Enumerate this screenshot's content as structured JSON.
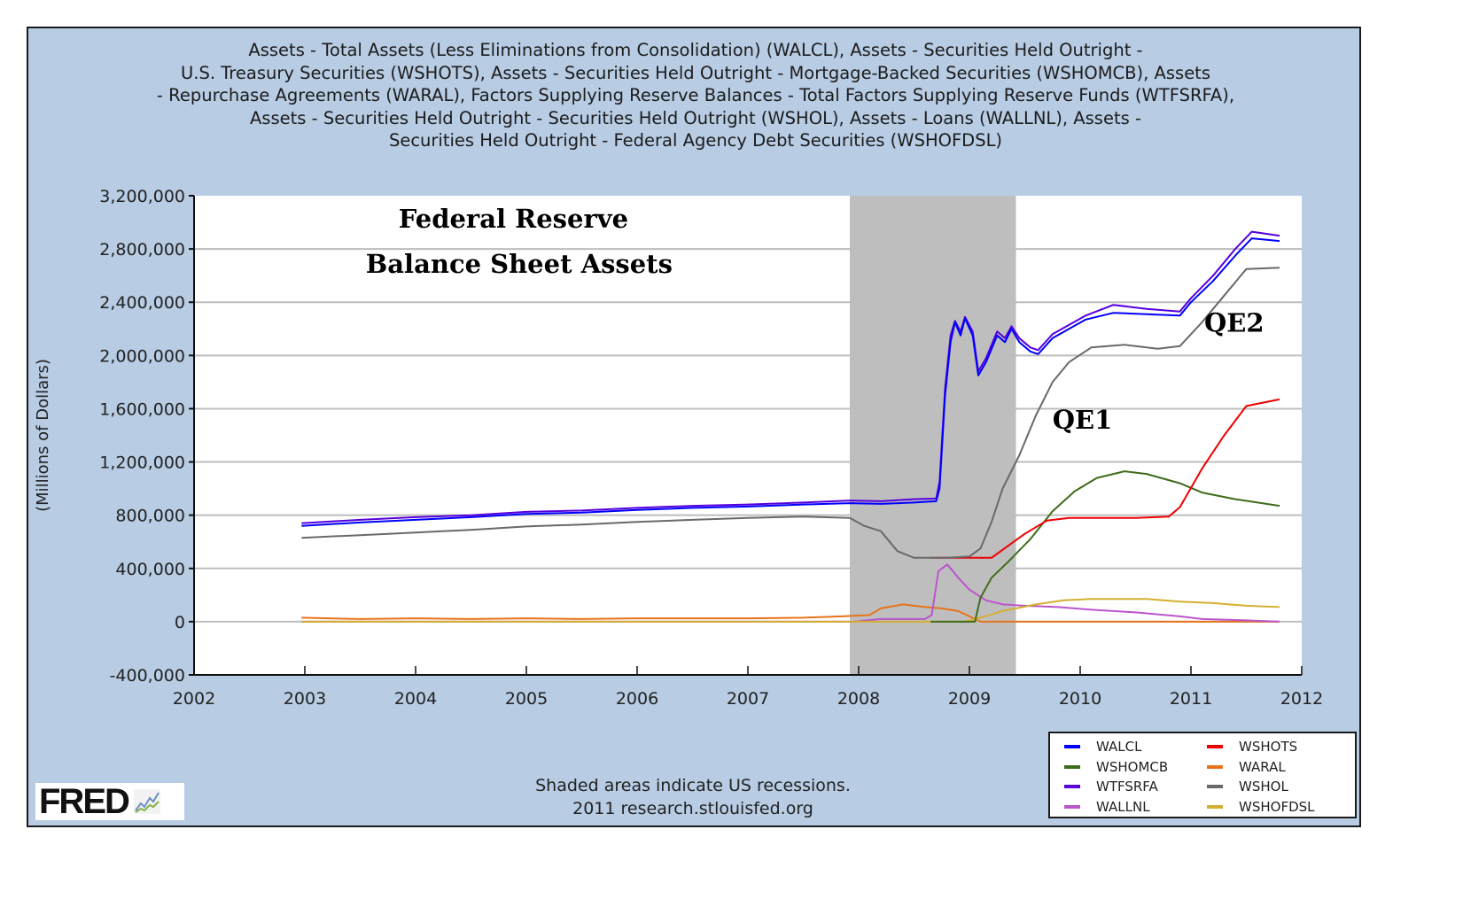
{
  "chart_data": {
    "type": "line",
    "title": "Assets - Total Assets (Less Eliminations from Consolidation) (WALCL), Assets - Securities Held Outright -\nU.S. Treasury Securities (WSHOTS), Assets - Securities Held Outright - Mortgage-Backed Securities (WSHOMCB), Assets\n- Repurchase Agreements (WARAL), Factors Supplying Reserve Balances - Total Factors Supplying Reserve Funds (WTFSRFA),\nAssets - Securities Held Outright - Securities Held Outright (WSHOL), Assets - Loans (WALLNL), Assets -\nSecurities Held Outright - Federal Agency Debt Securities (WSHOFDSL)",
    "xlabel": "",
    "ylabel": "(Millions of Dollars)",
    "xlim": [
      2002,
      2012
    ],
    "ylim": [
      -400000,
      3200000
    ],
    "x_ticks": [
      "2002",
      "2003",
      "2004",
      "2005",
      "2006",
      "2007",
      "2008",
      "2009",
      "2010",
      "2011",
      "2012"
    ],
    "y_ticks": [
      "3,200,000",
      "2,800,000",
      "2,400,000",
      "2,000,000",
      "1,600,000",
      "1,200,000",
      "800,000",
      "400,000",
      "0",
      "-400,000"
    ],
    "y_tick_values": [
      3200000,
      2800000,
      2400000,
      2000000,
      1600000,
      1200000,
      800000,
      400000,
      0,
      -400000
    ],
    "grid": true,
    "legend_position": "bottom-right",
    "recessions": [
      [
        2007.92,
        2009.42
      ]
    ],
    "annotations": [
      {
        "text": "Federal Reserve",
        "x": 2003.55,
        "y": 2960000
      },
      {
        "text": "Balance Sheet Assets",
        "x": 2003.55,
        "y": 2620000
      },
      {
        "text": "QE1",
        "x": 2009.75,
        "y": 1450000
      },
      {
        "text": "QE2",
        "x": 2011.12,
        "y": 2180000
      }
    ],
    "series": [
      {
        "name": "WALCL",
        "color": "#0000ff",
        "points": [
          [
            2002.97,
            720000
          ],
          [
            2003.5,
            745000
          ],
          [
            2004,
            765000
          ],
          [
            2004.5,
            785000
          ],
          [
            2005,
            810000
          ],
          [
            2005.5,
            820000
          ],
          [
            2006,
            840000
          ],
          [
            2006.5,
            855000
          ],
          [
            2007,
            865000
          ],
          [
            2007.5,
            880000
          ],
          [
            2007.92,
            890000
          ],
          [
            2008.2,
            885000
          ],
          [
            2008.5,
            895000
          ],
          [
            2008.7,
            905000
          ],
          [
            2008.73,
            1000000
          ],
          [
            2008.78,
            1700000
          ],
          [
            2008.83,
            2100000
          ],
          [
            2008.87,
            2250000
          ],
          [
            2008.92,
            2150000
          ],
          [
            2008.96,
            2280000
          ],
          [
            2009.03,
            2150000
          ],
          [
            2009.08,
            1850000
          ],
          [
            2009.15,
            1950000
          ],
          [
            2009.25,
            2150000
          ],
          [
            2009.32,
            2100000
          ],
          [
            2009.38,
            2200000
          ],
          [
            2009.45,
            2100000
          ],
          [
            2009.55,
            2030000
          ],
          [
            2009.62,
            2010000
          ],
          [
            2009.75,
            2130000
          ],
          [
            2009.9,
            2200000
          ],
          [
            2010.05,
            2270000
          ],
          [
            2010.3,
            2320000
          ],
          [
            2010.6,
            2310000
          ],
          [
            2010.9,
            2300000
          ],
          [
            2011.0,
            2400000
          ],
          [
            2011.2,
            2560000
          ],
          [
            2011.4,
            2750000
          ],
          [
            2011.55,
            2880000
          ],
          [
            2011.8,
            2860000
          ]
        ]
      },
      {
        "name": "WTFSRFA",
        "color": "#5500dd",
        "points": [
          [
            2002.97,
            740000
          ],
          [
            2003.5,
            765000
          ],
          [
            2004,
            785000
          ],
          [
            2004.5,
            800000
          ],
          [
            2005,
            825000
          ],
          [
            2005.5,
            835000
          ],
          [
            2006,
            855000
          ],
          [
            2006.5,
            870000
          ],
          [
            2007,
            880000
          ],
          [
            2007.5,
            895000
          ],
          [
            2007.92,
            910000
          ],
          [
            2008.2,
            905000
          ],
          [
            2008.5,
            920000
          ],
          [
            2008.7,
            925000
          ],
          [
            2008.73,
            1050000
          ],
          [
            2008.78,
            1750000
          ],
          [
            2008.83,
            2150000
          ],
          [
            2008.87,
            2260000
          ],
          [
            2008.92,
            2180000
          ],
          [
            2008.96,
            2290000
          ],
          [
            2009.03,
            2180000
          ],
          [
            2009.08,
            1880000
          ],
          [
            2009.15,
            1980000
          ],
          [
            2009.25,
            2180000
          ],
          [
            2009.32,
            2130000
          ],
          [
            2009.38,
            2220000
          ],
          [
            2009.45,
            2130000
          ],
          [
            2009.55,
            2060000
          ],
          [
            2009.62,
            2040000
          ],
          [
            2009.75,
            2160000
          ],
          [
            2009.9,
            2230000
          ],
          [
            2010.05,
            2300000
          ],
          [
            2010.3,
            2380000
          ],
          [
            2010.6,
            2350000
          ],
          [
            2010.9,
            2330000
          ],
          [
            2011.0,
            2430000
          ],
          [
            2011.2,
            2600000
          ],
          [
            2011.4,
            2800000
          ],
          [
            2011.55,
            2930000
          ],
          [
            2011.8,
            2900000
          ]
        ]
      },
      {
        "name": "WSHOL",
        "color": "#696969",
        "points": [
          [
            2002.97,
            630000
          ],
          [
            2003.5,
            650000
          ],
          [
            2004,
            670000
          ],
          [
            2004.5,
            690000
          ],
          [
            2005,
            715000
          ],
          [
            2005.5,
            730000
          ],
          [
            2006,
            750000
          ],
          [
            2006.5,
            765000
          ],
          [
            2007,
            780000
          ],
          [
            2007.5,
            790000
          ],
          [
            2007.92,
            780000
          ],
          [
            2008.05,
            720000
          ],
          [
            2008.2,
            680000
          ],
          [
            2008.35,
            530000
          ],
          [
            2008.5,
            480000
          ],
          [
            2008.8,
            480000
          ],
          [
            2009.0,
            490000
          ],
          [
            2009.1,
            550000
          ],
          [
            2009.2,
            750000
          ],
          [
            2009.3,
            1000000
          ],
          [
            2009.45,
            1250000
          ],
          [
            2009.6,
            1550000
          ],
          [
            2009.75,
            1800000
          ],
          [
            2009.9,
            1950000
          ],
          [
            2010.1,
            2060000
          ],
          [
            2010.4,
            2080000
          ],
          [
            2010.7,
            2050000
          ],
          [
            2010.9,
            2070000
          ],
          [
            2011.1,
            2250000
          ],
          [
            2011.3,
            2450000
          ],
          [
            2011.5,
            2650000
          ],
          [
            2011.8,
            2660000
          ]
        ]
      },
      {
        "name": "WSHOTS",
        "color": "#ee0000",
        "points": [
          [
            2008.65,
            480000
          ],
          [
            2009.2,
            480000
          ],
          [
            2009.35,
            570000
          ],
          [
            2009.5,
            660000
          ],
          [
            2009.7,
            760000
          ],
          [
            2009.9,
            780000
          ],
          [
            2010.5,
            780000
          ],
          [
            2010.8,
            790000
          ],
          [
            2010.9,
            860000
          ],
          [
            2011.1,
            1150000
          ],
          [
            2011.3,
            1400000
          ],
          [
            2011.5,
            1620000
          ],
          [
            2011.8,
            1670000
          ]
        ]
      },
      {
        "name": "WSHOMCB",
        "color": "#3f6b1a",
        "points": [
          [
            2008.65,
            0
          ],
          [
            2009.05,
            0
          ],
          [
            2009.1,
            180000
          ],
          [
            2009.2,
            330000
          ],
          [
            2009.35,
            450000
          ],
          [
            2009.55,
            620000
          ],
          [
            2009.75,
            830000
          ],
          [
            2009.95,
            980000
          ],
          [
            2010.15,
            1080000
          ],
          [
            2010.4,
            1130000
          ],
          [
            2010.6,
            1110000
          ],
          [
            2010.9,
            1040000
          ],
          [
            2011.1,
            970000
          ],
          [
            2011.4,
            920000
          ],
          [
            2011.8,
            870000
          ]
        ]
      },
      {
        "name": "WARAL",
        "color": "#e8731a",
        "points": [
          [
            2002.97,
            30000
          ],
          [
            2003.5,
            20000
          ],
          [
            2004,
            25000
          ],
          [
            2004.5,
            20000
          ],
          [
            2005,
            25000
          ],
          [
            2005.5,
            20000
          ],
          [
            2006,
            25000
          ],
          [
            2006.5,
            25000
          ],
          [
            2007,
            25000
          ],
          [
            2007.5,
            30000
          ],
          [
            2007.85,
            40000
          ],
          [
            2008.1,
            50000
          ],
          [
            2008.2,
            100000
          ],
          [
            2008.4,
            130000
          ],
          [
            2008.6,
            110000
          ],
          [
            2008.75,
            100000
          ],
          [
            2008.9,
            80000
          ],
          [
            2009.0,
            40000
          ],
          [
            2009.1,
            0
          ],
          [
            2011.8,
            0
          ]
        ]
      },
      {
        "name": "WALLNL",
        "color": "#bb55cc",
        "points": [
          [
            2002.97,
            0
          ],
          [
            2007.95,
            0
          ],
          [
            2008.2,
            20000
          ],
          [
            2008.6,
            20000
          ],
          [
            2008.66,
            50000
          ],
          [
            2008.72,
            380000
          ],
          [
            2008.8,
            430000
          ],
          [
            2008.9,
            330000
          ],
          [
            2009.0,
            240000
          ],
          [
            2009.15,
            160000
          ],
          [
            2009.3,
            130000
          ],
          [
            2009.5,
            120000
          ],
          [
            2009.8,
            110000
          ],
          [
            2010.1,
            90000
          ],
          [
            2010.5,
            70000
          ],
          [
            2010.9,
            40000
          ],
          [
            2011.1,
            20000
          ],
          [
            2011.5,
            10000
          ],
          [
            2011.8,
            0
          ]
        ]
      },
      {
        "name": "WSHOFDSL",
        "color": "#d4b030",
        "points": [
          [
            2002.97,
            0
          ],
          [
            2008.95,
            0
          ],
          [
            2009.1,
            30000
          ],
          [
            2009.3,
            80000
          ],
          [
            2009.6,
            130000
          ],
          [
            2009.85,
            160000
          ],
          [
            2010.1,
            170000
          ],
          [
            2010.6,
            170000
          ],
          [
            2010.9,
            150000
          ],
          [
            2011.2,
            140000
          ],
          [
            2011.5,
            120000
          ],
          [
            2011.8,
            110000
          ]
        ]
      }
    ]
  },
  "footer": {
    "line1": "Shaded areas indicate US recessions.",
    "line2": "2011 research.stlouisfed.org"
  },
  "logo": {
    "text": "FRED"
  },
  "legend": [
    {
      "name": "WALCL",
      "color": "#0000ff"
    },
    {
      "name": "WSHOTS",
      "color": "#ee0000"
    },
    {
      "name": "WSHOMCB",
      "color": "#3f6b1a"
    },
    {
      "name": "WARAL",
      "color": "#e8731a"
    },
    {
      "name": "WTFSRFA",
      "color": "#5500dd"
    },
    {
      "name": "WSHOL",
      "color": "#696969"
    },
    {
      "name": "WALLNL",
      "color": "#bb55cc"
    },
    {
      "name": "WSHOFDSL",
      "color": "#d4b030"
    }
  ]
}
